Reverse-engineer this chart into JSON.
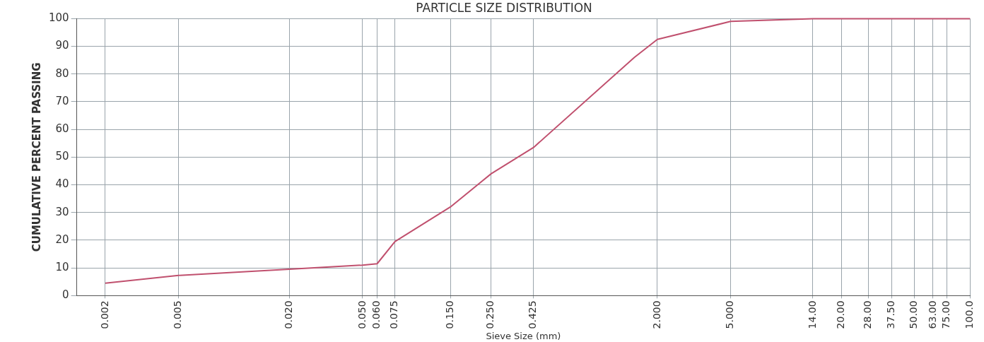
{
  "chart_data": {
    "type": "line",
    "title": "PARTICLE SIZE DISTRIBUTION",
    "xlabel": "Sieve Size (mm)",
    "ylabel": "CUMULATIVE PERCENT PASSING",
    "log": "x",
    "x": [
      0.002,
      0.005,
      0.02,
      0.05,
      0.06,
      0.075,
      0.15,
      0.25,
      0.425,
      1.5,
      2.0,
      5.0,
      14,
      20,
      28,
      37.5,
      50,
      63,
      75,
      100
    ],
    "series": [
      {
        "color": "#c0506e",
        "values": [
          4.5,
          7.3,
          9.5,
          11,
          11.5,
          19.5,
          32,
          44,
          53.5,
          86,
          92.5,
          99,
          100,
          100,
          100,
          100,
          100,
          100,
          100,
          100
        ]
      }
    ],
    "xlim": [
      0.0014,
      100
    ],
    "xticks": [
      {
        "value": 0.002,
        "label": "0.002"
      },
      {
        "value": 0.005,
        "label": "0.005"
      },
      {
        "value": 0.02,
        "label": "0.020"
      },
      {
        "value": 0.05,
        "label": "0.050"
      },
      {
        "value": 0.06,
        "label": "0.060"
      },
      {
        "value": 0.075,
        "label": "0.075"
      },
      {
        "value": 0.15,
        "label": "0.150"
      },
      {
        "value": 0.25,
        "label": "0.250"
      },
      {
        "value": 0.425,
        "label": "0.425"
      },
      {
        "value": 2,
        "label": "2.000"
      },
      {
        "value": 5,
        "label": "5.000"
      },
      {
        "value": 14,
        "label": "14.00"
      },
      {
        "value": 20,
        "label": "20.00"
      },
      {
        "value": 28,
        "label": "28.00"
      },
      {
        "value": 37.5,
        "label": "37.50"
      },
      {
        "value": 50,
        "label": "50.00"
      },
      {
        "value": 63,
        "label": "63.00"
      },
      {
        "value": 75,
        "label": "75.00"
      },
      {
        "value": 100,
        "label": "100.0"
      }
    ],
    "ylim": [
      0,
      100
    ],
    "yticks": [
      0,
      10,
      20,
      30,
      40,
      50,
      60,
      70,
      80,
      90,
      100
    ],
    "grid": true,
    "legend": false,
    "marker": "none",
    "line_style": "solid"
  }
}
